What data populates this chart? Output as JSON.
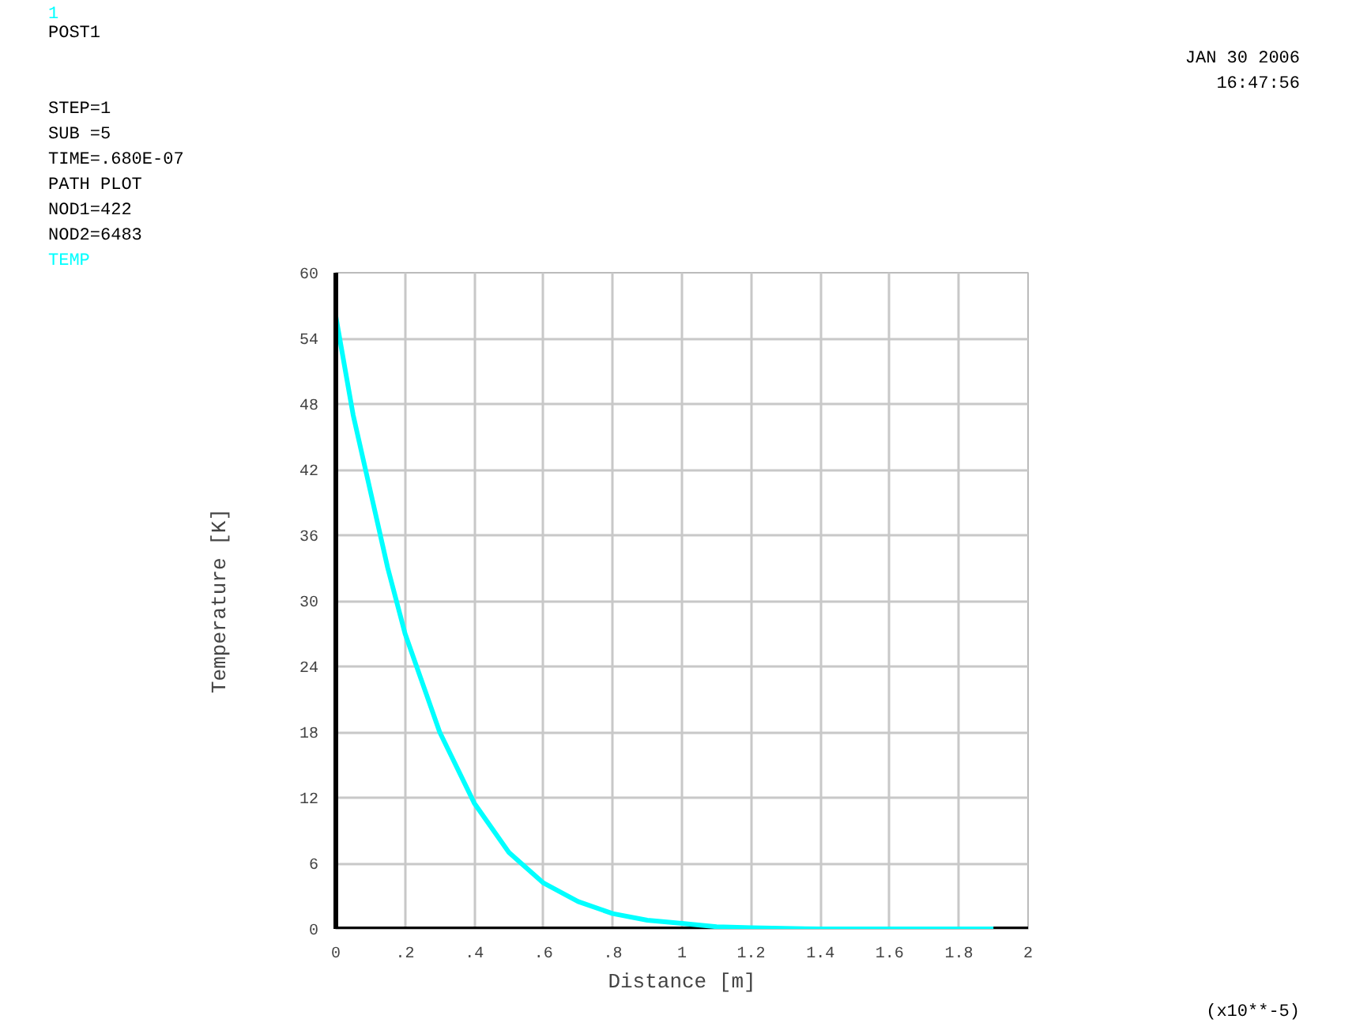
{
  "chart_data": {
    "type": "line",
    "xlabel": "Distance [m]",
    "ylabel": "Temperature [K]",
    "x": [
      0,
      0.05,
      0.1,
      0.15,
      0.2,
      0.3,
      0.4,
      0.5,
      0.6,
      0.7,
      0.8,
      0.9,
      1.0,
      1.1,
      1.2,
      1.4,
      1.6,
      1.8,
      1.9
    ],
    "series": [
      {
        "name": "TEMP",
        "color": "#00ffff",
        "values": [
          56,
          47,
          40,
          33,
          27,
          18,
          11.5,
          7,
          4.2,
          2.5,
          1.4,
          0.8,
          0.5,
          0.2,
          0.1,
          0,
          0,
          0,
          0
        ]
      }
    ],
    "xlim": [
      0,
      2
    ],
    "ylim": [
      0,
      60
    ],
    "xticks": [
      0,
      {
        "value": 0.2,
        "label": ".2"
      },
      {
        "value": 0.4,
        "label": ".4"
      },
      {
        "value": 0.6,
        "label": ".6"
      },
      {
        "value": 0.8,
        "label": ".8"
      },
      1,
      1.2,
      1.4,
      1.6,
      1.8,
      2
    ],
    "yticks": [
      0,
      6,
      12,
      18,
      24,
      30,
      36,
      42,
      48,
      54,
      60
    ],
    "grid": true,
    "line_style": "solid",
    "annotations": [
      "1",
      "POST1",
      "STEP=1",
      "SUB =5",
      "TIME=.680E-07",
      "PATH PLOT",
      "NOD1=422",
      "NOD2=6483",
      "JAN 30 2006",
      "16:47:56",
      "(x10**-5)"
    ]
  }
}
